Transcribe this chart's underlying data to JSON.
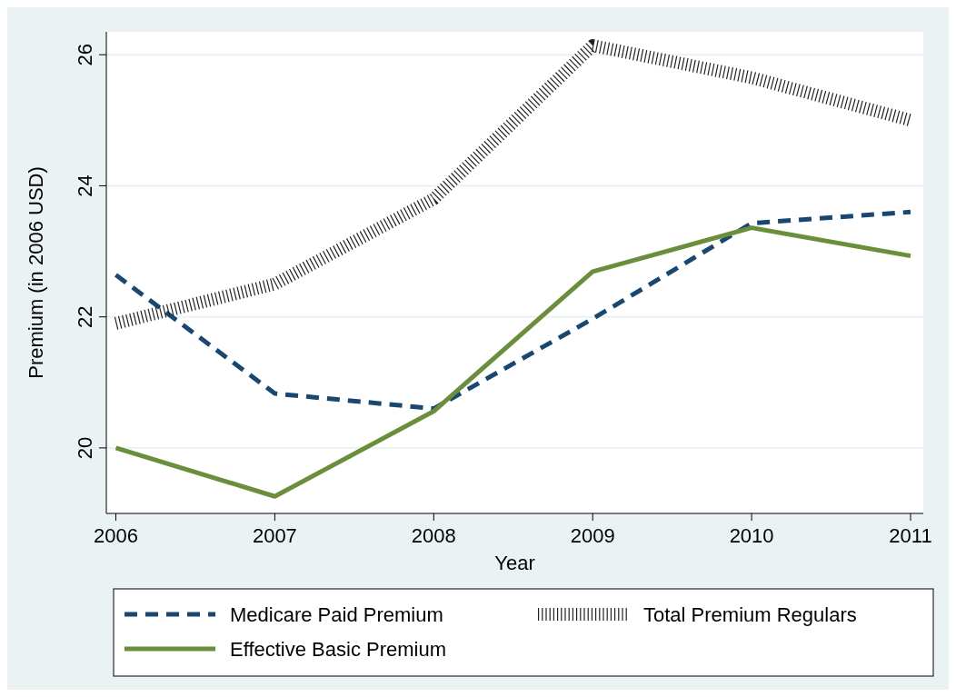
{
  "chart_data": {
    "type": "line",
    "xlabel": "Year",
    "ylabel": "Premium (in 2006 USD)",
    "x": [
      2006,
      2007,
      2008,
      2009,
      2010,
      2011
    ],
    "xlim": [
      2005.94,
      2011.08
    ],
    "xticks": [
      2006,
      2007,
      2008,
      2009,
      2010,
      2011
    ],
    "ylim": [
      19.0,
      26.35
    ],
    "yticks": [
      20,
      22,
      24,
      26
    ],
    "grid": "y",
    "legend": "bottom",
    "series": [
      {
        "name": "Medicare Paid Premium",
        "color": "#1a476f",
        "line_style": "dashed",
        "values": [
          22.64,
          20.83,
          20.6,
          21.97,
          23.43,
          23.6
        ]
      },
      {
        "name": "Total Premium Regulars",
        "color": "#222222",
        "line_style": "dotted",
        "values": [
          21.9,
          22.5,
          23.8,
          26.14,
          25.65,
          25.0
        ]
      },
      {
        "name": "Effective Basic Premium",
        "color": "#6b8e3d",
        "line_style": "solid",
        "values": [
          20.0,
          19.26,
          20.56,
          22.69,
          23.36,
          22.93
        ]
      }
    ]
  }
}
